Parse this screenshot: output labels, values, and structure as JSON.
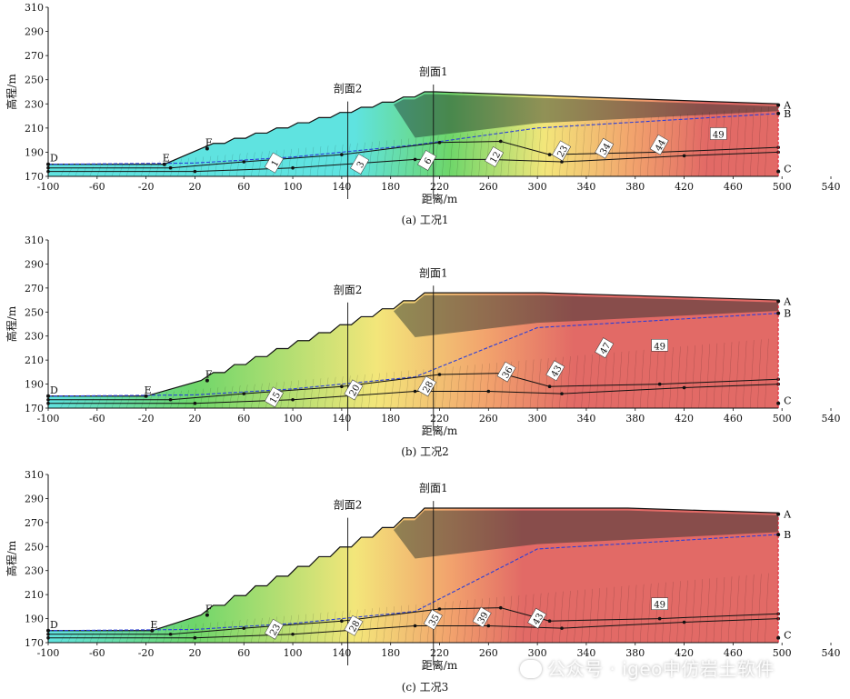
{
  "chart_data": [
    {
      "type": "contour",
      "caption": "(a) 工况1",
      "xlabel": "距离/m",
      "ylabel": "高程/m",
      "xlim": [
        -100,
        540
      ],
      "ylim": [
        170,
        310
      ],
      "xticks": [
        -100,
        -60,
        -20,
        20,
        60,
        100,
        140,
        180,
        220,
        260,
        300,
        340,
        380,
        420,
        460,
        500,
        540
      ],
      "yticks": [
        170,
        190,
        210,
        230,
        250,
        270,
        290,
        310
      ],
      "section_lines": [
        {
          "label": "剖面1",
          "x": 215
        },
        {
          "label": "剖面2",
          "x": 145
        }
      ],
      "points": [
        {
          "label": "A",
          "x": 497,
          "y": 229
        },
        {
          "label": "B",
          "x": 497,
          "y": 222
        },
        {
          "label": "C",
          "x": 497,
          "y": 174
        },
        {
          "label": "D",
          "x": -100,
          "y": 180
        },
        {
          "label": "E",
          "x": -5,
          "y": 180
        },
        {
          "label": "F",
          "x": 30,
          "y": 193
        }
      ],
      "terrace_top": 240,
      "right_top": 230,
      "water_right": 222,
      "contour_labels": [
        {
          "text": "1",
          "x": 85,
          "y": 181
        },
        {
          "text": "3",
          "x": 155,
          "y": 180
        },
        {
          "text": "6",
          "x": 210,
          "y": 183
        },
        {
          "text": "12",
          "x": 265,
          "y": 186
        },
        {
          "text": "23",
          "x": 320,
          "y": 191
        },
        {
          "text": "34",
          "x": 355,
          "y": 193
        },
        {
          "text": "44",
          "x": 400,
          "y": 196
        },
        {
          "text": "49",
          "x": 448,
          "y": 205
        }
      ]
    },
    {
      "type": "contour",
      "caption": "(b) 工况2",
      "xlabel": "距离/m",
      "ylabel": "高程/m",
      "xlim": [
        -100,
        540
      ],
      "ylim": [
        170,
        310
      ],
      "xticks": [
        -100,
        -60,
        -20,
        20,
        60,
        100,
        140,
        180,
        220,
        260,
        300,
        340,
        380,
        420,
        460,
        500,
        540
      ],
      "yticks": [
        170,
        190,
        210,
        230,
        250,
        270,
        290,
        310
      ],
      "section_lines": [
        {
          "label": "剖面1",
          "x": 215
        },
        {
          "label": "剖面2",
          "x": 145
        }
      ],
      "points": [
        {
          "label": "A",
          "x": 497,
          "y": 259
        },
        {
          "label": "B",
          "x": 497,
          "y": 249
        },
        {
          "label": "C",
          "x": 497,
          "y": 174
        },
        {
          "label": "D",
          "x": -100,
          "y": 180
        },
        {
          "label": "E",
          "x": -20,
          "y": 180
        },
        {
          "label": "F",
          "x": 30,
          "y": 193
        }
      ],
      "terrace_top": 266,
      "right_top": 260,
      "water_right": 249,
      "contour_labels": [
        {
          "text": "15",
          "x": 85,
          "y": 179
        },
        {
          "text": "20",
          "x": 150,
          "y": 185
        },
        {
          "text": "28",
          "x": 210,
          "y": 188
        },
        {
          "text": "36",
          "x": 275,
          "y": 200
        },
        {
          "text": "43",
          "x": 315,
          "y": 201
        },
        {
          "text": "47",
          "x": 355,
          "y": 220
        },
        {
          "text": "49",
          "x": 400,
          "y": 222
        }
      ]
    },
    {
      "type": "contour",
      "caption": "(c) 工况3",
      "xlabel": "距离/m",
      "ylabel": "高程/m",
      "xlim": [
        -100,
        540
      ],
      "ylim": [
        170,
        310
      ],
      "xticks": [
        -100,
        -60,
        -20,
        20,
        60,
        100,
        140,
        180,
        220,
        260,
        300,
        340,
        380,
        420,
        460,
        500,
        540
      ],
      "yticks": [
        170,
        190,
        210,
        230,
        250,
        270,
        290,
        310
      ],
      "section_lines": [
        {
          "label": "剖面1",
          "x": 215
        },
        {
          "label": "剖面2",
          "x": 145
        }
      ],
      "points": [
        {
          "label": "A",
          "x": 497,
          "y": 277
        },
        {
          "label": "B",
          "x": 497,
          "y": 260
        },
        {
          "label": "C",
          "x": 497,
          "y": 174
        },
        {
          "label": "D",
          "x": -100,
          "y": 180
        },
        {
          "label": "E",
          "x": -15,
          "y": 180
        },
        {
          "label": "F",
          "x": 30,
          "y": 193
        }
      ],
      "terrace_top": 282,
      "right_top": 278,
      "water_right": 260,
      "contour_labels": [
        {
          "text": "23",
          "x": 85,
          "y": 181
        },
        {
          "text": "28",
          "x": 150,
          "y": 184
        },
        {
          "text": "35",
          "x": 215,
          "y": 189
        },
        {
          "text": "39",
          "x": 255,
          "y": 191
        },
        {
          "text": "43",
          "x": 300,
          "y": 190
        },
        {
          "text": "49",
          "x": 400,
          "y": 202
        }
      ]
    }
  ],
  "watermark": "公众号 · igeo中仿岩土软件",
  "colors": {
    "low": "#2ec4cc",
    "cyan": "#5fe3e0",
    "green": "#6ed66a",
    "yellow": "#f3e67a",
    "orange": "#f2a36d",
    "red": "#e26a66",
    "water_line": "#2b3fd8",
    "boundary": "#e0162a"
  }
}
